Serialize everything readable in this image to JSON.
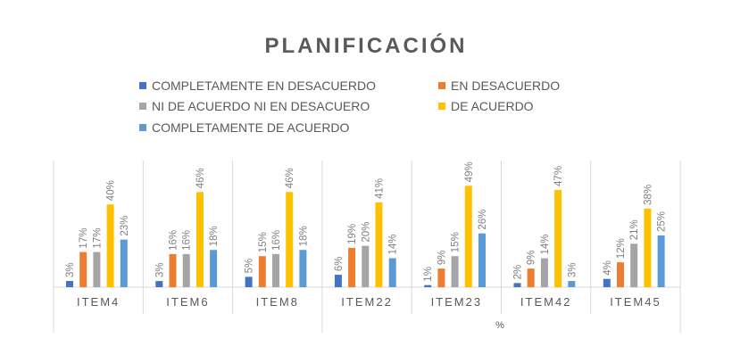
{
  "chart_data": {
    "type": "bar",
    "title": "PLANIFICACIÓN",
    "xlabel": "%",
    "ylabel": "",
    "ylim": [
      0,
      50
    ],
    "grid": false,
    "legend_position": "top",
    "categories": [
      "ITEM4",
      "ITEM6",
      "ITEM8",
      "ITEM22",
      "ITEM23",
      "ITEM42",
      "ITEM45"
    ],
    "series": [
      {
        "name": "COMPLETAMENTE EN DESACUERDO",
        "color": "#4472C4",
        "values": [
          3,
          3,
          5,
          6,
          1,
          2,
          4
        ],
        "labels": [
          "3%",
          "3%",
          "5%",
          "6%",
          "1%",
          "2%",
          "4%"
        ]
      },
      {
        "name": "EN DESACUERDO",
        "color": "#ED7D31",
        "values": [
          17,
          16,
          15,
          19,
          9,
          9,
          12
        ],
        "labels": [
          "17%",
          "16%",
          "15%",
          "19%",
          "9%",
          "9%",
          "12%"
        ]
      },
      {
        "name": "NI DE ACUERDO NI EN DESACUERO",
        "color": "#A5A5A5",
        "values": [
          17,
          16,
          16,
          20,
          15,
          14,
          21
        ],
        "labels": [
          "17%",
          "16%",
          "16%",
          "20%",
          "15%",
          "14%",
          "21%"
        ]
      },
      {
        "name": "DE ACUERDO",
        "color": "#FFC000",
        "values": [
          40,
          46,
          46,
          41,
          49,
          47,
          38
        ],
        "labels": [
          "40%",
          "46%",
          "46%",
          "41%",
          "49%",
          "47%",
          "38%"
        ]
      },
      {
        "name": "COMPLETAMENTE DE ACUERDO",
        "color": "#5B9BD5",
        "values": [
          23,
          18,
          18,
          14,
          26,
          3,
          25
        ],
        "labels": [
          "23%",
          "18%",
          "18%",
          "14%",
          "26%",
          "3%",
          "25%"
        ]
      }
    ]
  }
}
